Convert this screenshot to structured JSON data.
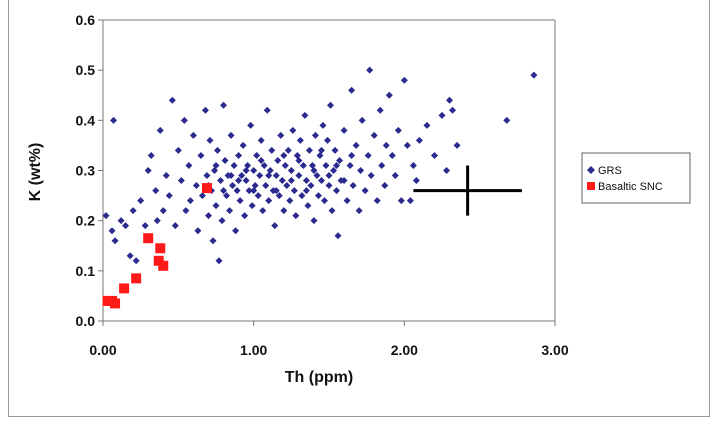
{
  "chart_data": {
    "type": "scatter",
    "title": "",
    "xlabel": "Th (ppm)",
    "ylabel": "K (wt%)",
    "xlim": [
      0,
      3.0
    ],
    "ylim": [
      0,
      0.6
    ],
    "x_ticks": [
      "0.00",
      "1.00",
      "2.00",
      "3.00"
    ],
    "y_ticks": [
      "0.0",
      "0.1",
      "0.2",
      "0.3",
      "0.4",
      "0.5",
      "0.6"
    ],
    "grid": false,
    "legend_position": "right",
    "series": [
      {
        "name": "GRS",
        "marker": "diamond",
        "color": "#2b2b8f",
        "points": [
          [
            0.02,
            0.21
          ],
          [
            0.06,
            0.18
          ],
          [
            0.07,
            0.4
          ],
          [
            0.08,
            0.16
          ],
          [
            0.12,
            0.2
          ],
          [
            0.15,
            0.19
          ],
          [
            0.18,
            0.13
          ],
          [
            0.2,
            0.22
          ],
          [
            0.22,
            0.12
          ],
          [
            0.25,
            0.24
          ],
          [
            0.28,
            0.19
          ],
          [
            0.3,
            0.3
          ],
          [
            0.32,
            0.33
          ],
          [
            0.35,
            0.26
          ],
          [
            0.36,
            0.2
          ],
          [
            0.38,
            0.38
          ],
          [
            0.4,
            0.22
          ],
          [
            0.42,
            0.29
          ],
          [
            0.44,
            0.25
          ],
          [
            0.46,
            0.44
          ],
          [
            0.48,
            0.19
          ],
          [
            0.5,
            0.34
          ],
          [
            0.52,
            0.28
          ],
          [
            0.54,
            0.4
          ],
          [
            0.55,
            0.22
          ],
          [
            0.57,
            0.31
          ],
          [
            0.58,
            0.24
          ],
          [
            0.6,
            0.37
          ],
          [
            0.62,
            0.27
          ],
          [
            0.63,
            0.18
          ],
          [
            0.65,
            0.33
          ],
          [
            0.66,
            0.25
          ],
          [
            0.68,
            0.42
          ],
          [
            0.69,
            0.29
          ],
          [
            0.7,
            0.21
          ],
          [
            0.71,
            0.36
          ],
          [
            0.72,
            0.26
          ],
          [
            0.73,
            0.16
          ],
          [
            0.74,
            0.3
          ],
          [
            0.75,
            0.23
          ],
          [
            0.76,
            0.34
          ],
          [
            0.77,
            0.12
          ],
          [
            0.78,
            0.28
          ],
          [
            0.79,
            0.2
          ],
          [
            0.8,
            0.43
          ],
          [
            0.81,
            0.32
          ],
          [
            0.82,
            0.25
          ],
          [
            0.83,
            0.29
          ],
          [
            0.84,
            0.22
          ],
          [
            0.85,
            0.37
          ],
          [
            0.86,
            0.27
          ],
          [
            0.87,
            0.31
          ],
          [
            0.88,
            0.18
          ],
          [
            0.89,
            0.26
          ],
          [
            0.9,
            0.33
          ],
          [
            0.91,
            0.24
          ],
          [
            0.92,
            0.29
          ],
          [
            0.93,
            0.35
          ],
          [
            0.94,
            0.21
          ],
          [
            0.95,
            0.28
          ],
          [
            0.96,
            0.31
          ],
          [
            0.97,
            0.26
          ],
          [
            0.98,
            0.39
          ],
          [
            0.99,
            0.23
          ],
          [
            1.0,
            0.3
          ],
          [
            1.01,
            0.27
          ],
          [
            1.02,
            0.33
          ],
          [
            1.03,
            0.25
          ],
          [
            1.04,
            0.29
          ],
          [
            1.05,
            0.36
          ],
          [
            1.06,
            0.22
          ],
          [
            1.07,
            0.31
          ],
          [
            1.08,
            0.27
          ],
          [
            1.09,
            0.42
          ],
          [
            1.1,
            0.24
          ],
          [
            1.11,
            0.3
          ],
          [
            1.12,
            0.34
          ],
          [
            1.13,
            0.26
          ],
          [
            1.14,
            0.19
          ],
          [
            1.15,
            0.29
          ],
          [
            1.16,
            0.32
          ],
          [
            1.17,
            0.25
          ],
          [
            1.18,
            0.37
          ],
          [
            1.19,
            0.28
          ],
          [
            1.2,
            0.22
          ],
          [
            1.21,
            0.31
          ],
          [
            1.22,
            0.27
          ],
          [
            1.23,
            0.34
          ],
          [
            1.24,
            0.24
          ],
          [
            1.25,
            0.3
          ],
          [
            1.26,
            0.38
          ],
          [
            1.27,
            0.26
          ],
          [
            1.28,
            0.21
          ],
          [
            1.29,
            0.33
          ],
          [
            1.3,
            0.29
          ],
          [
            1.31,
            0.36
          ],
          [
            1.32,
            0.25
          ],
          [
            1.33,
            0.31
          ],
          [
            1.34,
            0.41
          ],
          [
            1.35,
            0.28
          ],
          [
            1.36,
            0.23
          ],
          [
            1.37,
            0.34
          ],
          [
            1.38,
            0.27
          ],
          [
            1.39,
            0.31
          ],
          [
            1.4,
            0.2
          ],
          [
            1.41,
            0.37
          ],
          [
            1.42,
            0.29
          ],
          [
            1.43,
            0.25
          ],
          [
            1.44,
            0.33
          ],
          [
            1.45,
            0.28
          ],
          [
            1.46,
            0.39
          ],
          [
            1.47,
            0.24
          ],
          [
            1.48,
            0.31
          ],
          [
            1.49,
            0.36
          ],
          [
            1.5,
            0.27
          ],
          [
            1.51,
            0.43
          ],
          [
            1.52,
            0.22
          ],
          [
            1.53,
            0.3
          ],
          [
            1.54,
            0.34
          ],
          [
            1.55,
            0.26
          ],
          [
            1.56,
            0.17
          ],
          [
            1.57,
            0.32
          ],
          [
            1.58,
            0.28
          ],
          [
            1.6,
            0.38
          ],
          [
            1.62,
            0.24
          ],
          [
            1.64,
            0.31
          ],
          [
            1.65,
            0.46
          ],
          [
            1.66,
            0.27
          ],
          [
            1.68,
            0.35
          ],
          [
            1.7,
            0.22
          ],
          [
            1.71,
            0.3
          ],
          [
            1.72,
            0.4
          ],
          [
            1.74,
            0.26
          ],
          [
            1.76,
            0.33
          ],
          [
            1.77,
            0.5
          ],
          [
            1.78,
            0.29
          ],
          [
            1.8,
            0.37
          ],
          [
            1.82,
            0.24
          ],
          [
            1.84,
            0.42
          ],
          [
            1.85,
            0.31
          ],
          [
            1.87,
            0.27
          ],
          [
            1.88,
            0.35
          ],
          [
            1.9,
            0.45
          ],
          [
            1.92,
            0.33
          ],
          [
            1.94,
            0.29
          ],
          [
            1.96,
            0.38
          ],
          [
            1.98,
            0.24
          ],
          [
            2.0,
            0.48
          ],
          [
            2.02,
            0.35
          ],
          [
            2.04,
            0.24
          ],
          [
            2.06,
            0.31
          ],
          [
            2.08,
            0.28
          ],
          [
            2.1,
            0.36
          ],
          [
            2.15,
            0.39
          ],
          [
            2.2,
            0.33
          ],
          [
            2.25,
            0.41
          ],
          [
            2.28,
            0.3
          ],
          [
            2.3,
            0.44
          ],
          [
            2.32,
            0.42
          ],
          [
            2.35,
            0.35
          ],
          [
            2.68,
            0.4
          ],
          [
            2.86,
            0.49
          ],
          [
            0.9,
            0.28
          ],
          [
            0.95,
            0.3
          ],
          [
            1.0,
            0.26
          ],
          [
            1.05,
            0.32
          ],
          [
            1.1,
            0.29
          ],
          [
            1.15,
            0.26
          ],
          [
            1.2,
            0.33
          ],
          [
            1.25,
            0.28
          ],
          [
            1.3,
            0.32
          ],
          [
            1.35,
            0.26
          ],
          [
            1.4,
            0.3
          ],
          [
            1.45,
            0.34
          ],
          [
            1.5,
            0.29
          ],
          [
            1.55,
            0.31
          ],
          [
            0.85,
            0.29
          ],
          [
            0.8,
            0.26
          ],
          [
            0.75,
            0.31
          ],
          [
            0.7,
            0.27
          ],
          [
            1.6,
            0.28
          ],
          [
            1.65,
            0.33
          ]
        ]
      },
      {
        "name": "Basaltic SNC",
        "marker": "square",
        "color": "#ff1a1a",
        "points": [
          [
            0.03,
            0.04
          ],
          [
            0.06,
            0.04
          ],
          [
            0.08,
            0.035
          ],
          [
            0.14,
            0.065
          ],
          [
            0.22,
            0.085
          ],
          [
            0.3,
            0.165
          ],
          [
            0.37,
            0.12
          ],
          [
            0.38,
            0.145
          ],
          [
            0.4,
            0.11
          ],
          [
            0.69,
            0.265
          ]
        ]
      }
    ],
    "annotations": [
      {
        "name": "error bar",
        "x": 2.42,
        "y": 0.26,
        "x_err": 0.36,
        "y_err": 0.05
      }
    ]
  }
}
